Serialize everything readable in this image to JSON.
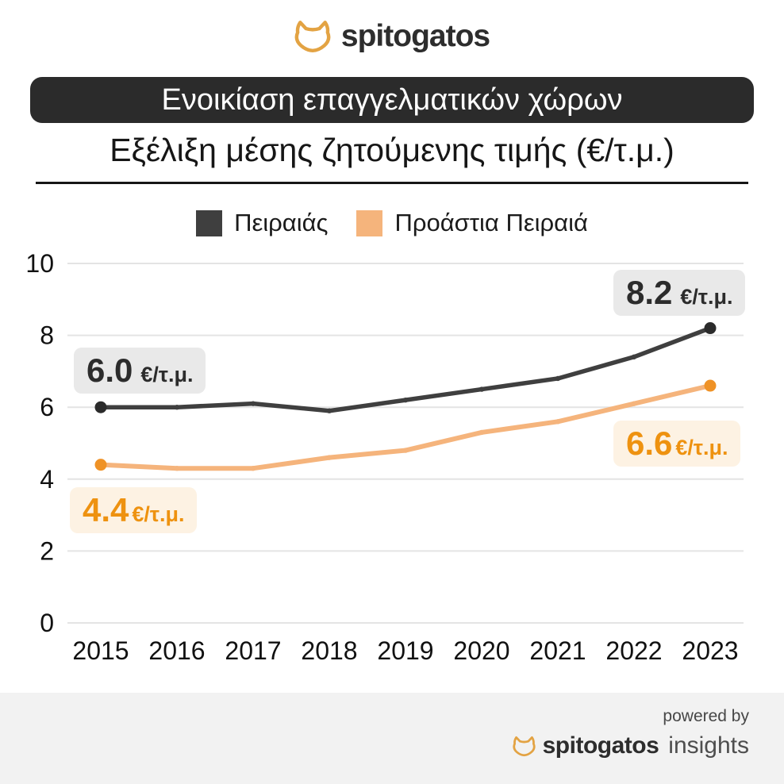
{
  "brand": {
    "name": "spitogatos",
    "cat_color": "#E3A343"
  },
  "header": {
    "banner": "Ενοικίαση επαγγελματικών χώρων",
    "subtitle": "Εξέλιξη μέσης ζητούμενης τιμής (€/τ.μ.)",
    "banner_bg": "#2b2b2b"
  },
  "chart_data": {
    "type": "line",
    "title": "Ενοικίαση επαγγελματικών χώρων",
    "subtitle": "Εξέλιξη μέσης ζητούμενης τιμής (€/τ.μ.)",
    "categories": [
      "2015",
      "2016",
      "2017",
      "2018",
      "2019",
      "2020",
      "2021",
      "2022",
      "2023"
    ],
    "series": [
      {
        "name": "Πειραιάς",
        "color": "#3f3f3f",
        "dot_color": "#2b2b2b",
        "values": [
          6.0,
          6.0,
          6.1,
          5.9,
          6.2,
          6.5,
          6.8,
          7.4,
          8.2
        ]
      },
      {
        "name": "Προάστια Πειραιά",
        "color": "#f5b47c",
        "dot_color": "#ef9226",
        "values": [
          4.4,
          4.3,
          4.3,
          4.6,
          4.8,
          5.3,
          5.6,
          6.1,
          6.6
        ]
      }
    ],
    "unit": "€/τ.μ.",
    "xlabel": "",
    "ylabel": "",
    "ylim": [
      0,
      10
    ],
    "yticks": [
      0,
      2,
      4,
      6,
      8,
      10
    ],
    "grid": true,
    "legend_position": "top",
    "point_labels": [
      {
        "series": "Πειραιάς",
        "year": "2015",
        "value": "6.0",
        "unit": "€/τ.μ.",
        "style": "dark"
      },
      {
        "series": "Πειραιάς",
        "year": "2023",
        "value": "8.2",
        "unit": "€/τ.μ.",
        "style": "dark"
      },
      {
        "series": "Προάστια Πειραιά",
        "year": "2015",
        "value": "4.4",
        "unit": "€/τ.μ.",
        "style": "orange"
      },
      {
        "series": "Προάστια Πειραιά",
        "year": "2023",
        "value": "6.6",
        "unit": "€/τ.μ.",
        "style": "orange"
      }
    ]
  },
  "footer": {
    "powered_by": "powered by",
    "brand": "spitogatos",
    "suffix": "insights",
    "bg": "#f2f2f2"
  }
}
